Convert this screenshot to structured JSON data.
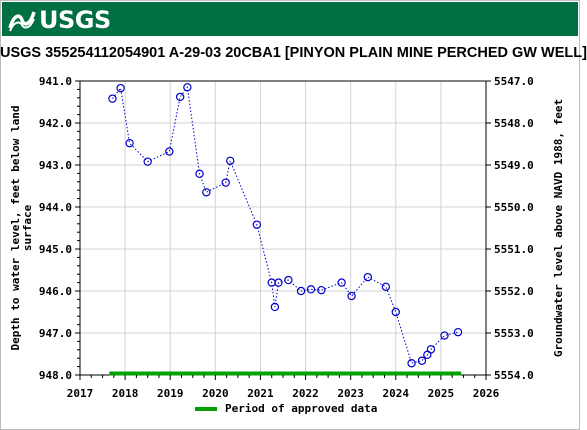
{
  "header": {
    "logo_text": "USGS",
    "logo_icon": "usgs-wave-icon",
    "brand_color": "#006f41"
  },
  "chart_data": {
    "type": "scatter",
    "title": "USGS 355254112054901 A-29-03 20CBA1 [PINYON PLAIN MINE PERCHED GW WELL]",
    "ylabel_left_line1": "Depth to water level, feet below land",
    "ylabel_left_line2": "surface",
    "ylabel_right": "Groundwater level above NAVD 1988, feet",
    "xlim": [
      2017,
      2026
    ],
    "ylim_left": [
      941.0,
      948.0
    ],
    "ylim_left_inverted": true,
    "ylim_right": [
      5547.0,
      5554.0
    ],
    "x_ticks": [
      "2017",
      "2018",
      "2019",
      "2020",
      "2021",
      "2022",
      "2023",
      "2024",
      "2025",
      "2026"
    ],
    "y_left_ticks": [
      "941.0",
      "942.0",
      "943.0",
      "944.0",
      "945.0",
      "946.0",
      "947.0",
      "948.0"
    ],
    "y_right_ticks": [
      "5554.0",
      "5553.0",
      "5552.0",
      "5551.0",
      "5550.0",
      "5549.0",
      "5548.0",
      "5547.0"
    ],
    "grid": true,
    "series": [
      {
        "marker": "circle",
        "color": "#0000c8",
        "line_style": "dotted",
        "points": [
          [
            2017.72,
            941.42
          ],
          [
            2017.9,
            941.17
          ],
          [
            2018.1,
            942.48
          ],
          [
            2018.5,
            942.92
          ],
          [
            2018.98,
            942.68
          ],
          [
            2019.22,
            941.38
          ],
          [
            2019.38,
            941.15
          ],
          [
            2019.65,
            943.21
          ],
          [
            2019.8,
            943.65
          ],
          [
            2020.23,
            943.42
          ],
          [
            2020.33,
            942.9
          ],
          [
            2020.92,
            944.42
          ],
          [
            2021.25,
            945.8
          ],
          [
            2021.32,
            946.38
          ],
          [
            2021.4,
            945.8
          ],
          [
            2021.62,
            945.74
          ],
          [
            2021.9,
            946.0
          ],
          [
            2022.12,
            945.96
          ],
          [
            2022.35,
            945.98
          ],
          [
            2022.8,
            945.8
          ],
          [
            2023.02,
            946.12
          ],
          [
            2023.38,
            945.67
          ],
          [
            2023.78,
            945.9
          ],
          [
            2024.0,
            946.5
          ],
          [
            2024.35,
            947.72
          ],
          [
            2024.58,
            947.66
          ],
          [
            2024.7,
            947.52
          ],
          [
            2024.78,
            947.39
          ],
          [
            2025.08,
            947.06
          ],
          [
            2025.38,
            946.98
          ]
        ]
      }
    ],
    "approved_period": {
      "start": 2017.65,
      "end": 2025.45,
      "color": "#00a000"
    },
    "legend": {
      "position": "bottom-center",
      "label": "Period of approved data"
    }
  }
}
